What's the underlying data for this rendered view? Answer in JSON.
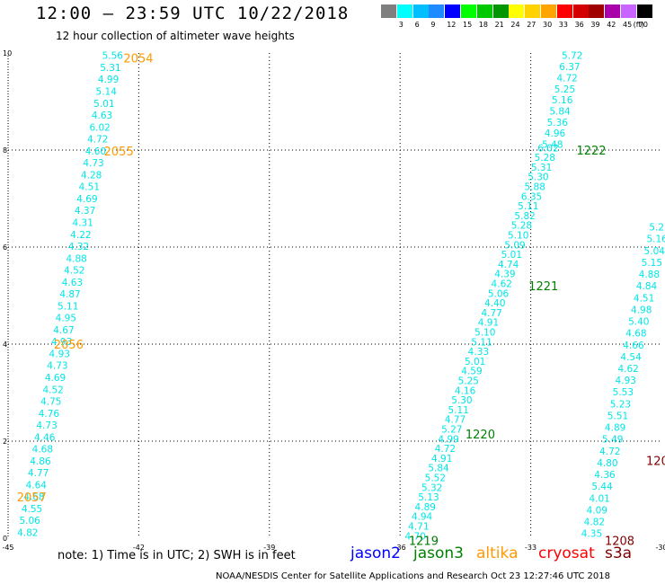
{
  "header": {
    "title": "12:00 – 23:59 UTC 10/22/2018",
    "subtitle": "12 hour collection of altimeter wave heights"
  },
  "color_scale": {
    "unit": "(ft)",
    "steps": [
      {
        "label": "",
        "color": "#7f7f7f"
      },
      {
        "label": "3",
        "color": "#00ffff"
      },
      {
        "label": "6",
        "color": "#00bfff"
      },
      {
        "label": "9",
        "color": "#1e8cff"
      },
      {
        "label": "12",
        "color": "#0000ff"
      },
      {
        "label": "15",
        "color": "#00ff00"
      },
      {
        "label": "18",
        "color": "#00c800"
      },
      {
        "label": "21",
        "color": "#009600"
      },
      {
        "label": "24",
        "color": "#ffff00"
      },
      {
        "label": "27",
        "color": "#ffd200"
      },
      {
        "label": "30",
        "color": "#ffa500"
      },
      {
        "label": "33",
        "color": "#ff0000"
      },
      {
        "label": "36",
        "color": "#d20000"
      },
      {
        "label": "39",
        "color": "#a00000"
      },
      {
        "label": "42",
        "color": "#aa00aa"
      },
      {
        "label": "45",
        "color": "#c864ff"
      },
      {
        "label": "70",
        "color": "#000000"
      }
    ]
  },
  "chart_data": {
    "type": "scatter",
    "xlim": [
      -45,
      -30
    ],
    "ylim": [
      0,
      10
    ],
    "xticks": [
      "-45",
      "-42",
      "-39",
      "-36",
      "-33",
      "-30"
    ],
    "yticks": [
      "0",
      "2",
      "4",
      "6",
      "8",
      "10"
    ],
    "grid": true,
    "text_color": "#00e6e6",
    "tracks": [
      {
        "x_start": -44.55,
        "y_start": 0.12,
        "x_end": -42.6,
        "y_end": 9.95,
        "values": [
          "4.82",
          "5.06",
          "4.55",
          "4.68",
          "4.64",
          "4.77",
          "4.86",
          "4.68",
          "4.46",
          "4.73",
          "4.76",
          "4.75",
          "4.52",
          "4.69",
          "4.73",
          "4.93",
          "4.93",
          "4.67",
          "4.95",
          "5.11",
          "4.87",
          "4.63",
          "4.52",
          "4.88",
          "4.32",
          "4.22",
          "4.31",
          "4.37",
          "4.69",
          "4.51",
          "4.28",
          "4.73",
          "4.60",
          "4.72",
          "6.02",
          "4.63",
          "5.01",
          "5.14",
          "4.99",
          "5.31",
          "5.56"
        ]
      },
      {
        "x_start": -35.65,
        "y_start": 0.05,
        "x_end": -32.6,
        "y_end": 8.05,
        "values": [
          "4.70",
          "4.71",
          "4.94",
          "4.89",
          "5.13",
          "5.32",
          "5.52",
          "5.84",
          "4.91",
          "4.72",
          "4.99",
          "5.27",
          "4.77",
          "5.11",
          "5.30",
          "4.16",
          "5.25",
          "4.59",
          "5.01",
          "4.33",
          "5.11",
          "5.10",
          "4.91",
          "4.77",
          "4.40",
          "5.06",
          "4.62",
          "4.39",
          "4.74",
          "5.01",
          "5.09",
          "5.10",
          "5.28",
          "5.82",
          "5.11",
          "6.35",
          "5.88",
          "5.30",
          "5.31",
          "5.28",
          "6.02"
        ]
      },
      {
        "x_start": -32.5,
        "y_start": 8.12,
        "x_end": -32.05,
        "y_end": 9.95,
        "values": [
          "5.48",
          "4.96",
          "5.36",
          "5.84",
          "5.16",
          "5.25",
          "4.72",
          "6.37",
          "5.72"
        ]
      },
      {
        "x_start": -31.6,
        "y_start": 0.1,
        "x_end": -29.5,
        "y_end": 8.6,
        "values": [
          "4.35",
          "4.82",
          "4.09",
          "4.01",
          "5.44",
          "4.36",
          "4.80",
          "4.72",
          "5.49",
          "4.89",
          "5.51",
          "5.23",
          "5.53",
          "4.93",
          "4.62",
          "4.54",
          "4.66",
          "4.68",
          "5.40",
          "4.98",
          "4.51",
          "4.84",
          "4.88",
          "5.15",
          "5.04",
          "5.16",
          "5.21",
          "5.30",
          "4.43",
          "5.10",
          "5.32",
          "4.68",
          "5.62",
          "5.71",
          "5.2",
          "5.0"
        ]
      }
    ],
    "time_labels": [
      {
        "text": "2054",
        "x": -42.35,
        "y": 9.9,
        "color": "#ff9900"
      },
      {
        "text": "2055",
        "x": -42.8,
        "y": 7.98,
        "color": "#ff9900"
      },
      {
        "text": "2056",
        "x": -43.95,
        "y": 4.0,
        "color": "#ff9900"
      },
      {
        "text": "2057",
        "x": -44.8,
        "y": 0.85,
        "color": "#ff9900"
      },
      {
        "text": "1222",
        "x": -31.95,
        "y": 8.0,
        "color": "#008000"
      },
      {
        "text": "1221",
        "x": -33.05,
        "y": 5.2,
        "color": "#008000"
      },
      {
        "text": "1220",
        "x": -34.5,
        "y": 2.15,
        "color": "#008000"
      },
      {
        "text": "1219",
        "x": -35.8,
        "y": -0.05,
        "color": "#008000"
      },
      {
        "text": "1207",
        "x": -30.35,
        "y": 1.6,
        "color": "#800000"
      },
      {
        "text": "1208",
        "x": -31.3,
        "y": -0.05,
        "color": "#800000"
      },
      {
        "text": "12",
        "x": -29.8,
        "y": 5.1,
        "color": "#800000"
      },
      {
        "text": "11.",
        "x": -29.85,
        "y": 8.7,
        "color": "#000000"
      }
    ],
    "partial_values": [
      {
        "text": "4",
        "x": -29.6,
        "y": 9.1
      },
      {
        "text": "4",
        "x": -29.6,
        "y": 8.45
      }
    ]
  },
  "footer": {
    "note": "note:  1) Time is in UTC;  2) SWH is in feet",
    "satellites": [
      {
        "name": "jason2",
        "color": "#0000ff",
        "x": 390
      },
      {
        "name": "jason3",
        "color": "#008000",
        "x": 460
      },
      {
        "name": "altika",
        "color": "#ff9900",
        "x": 530
      },
      {
        "name": "cryosat",
        "color": "#ff0000",
        "x": 599
      },
      {
        "name": "s3a",
        "color": "#800000",
        "x": 673
      }
    ],
    "credit": "NOAA/NESDIS Center for Satellite Applications and Research     Oct 23 12:27:46 UTC 2018"
  }
}
